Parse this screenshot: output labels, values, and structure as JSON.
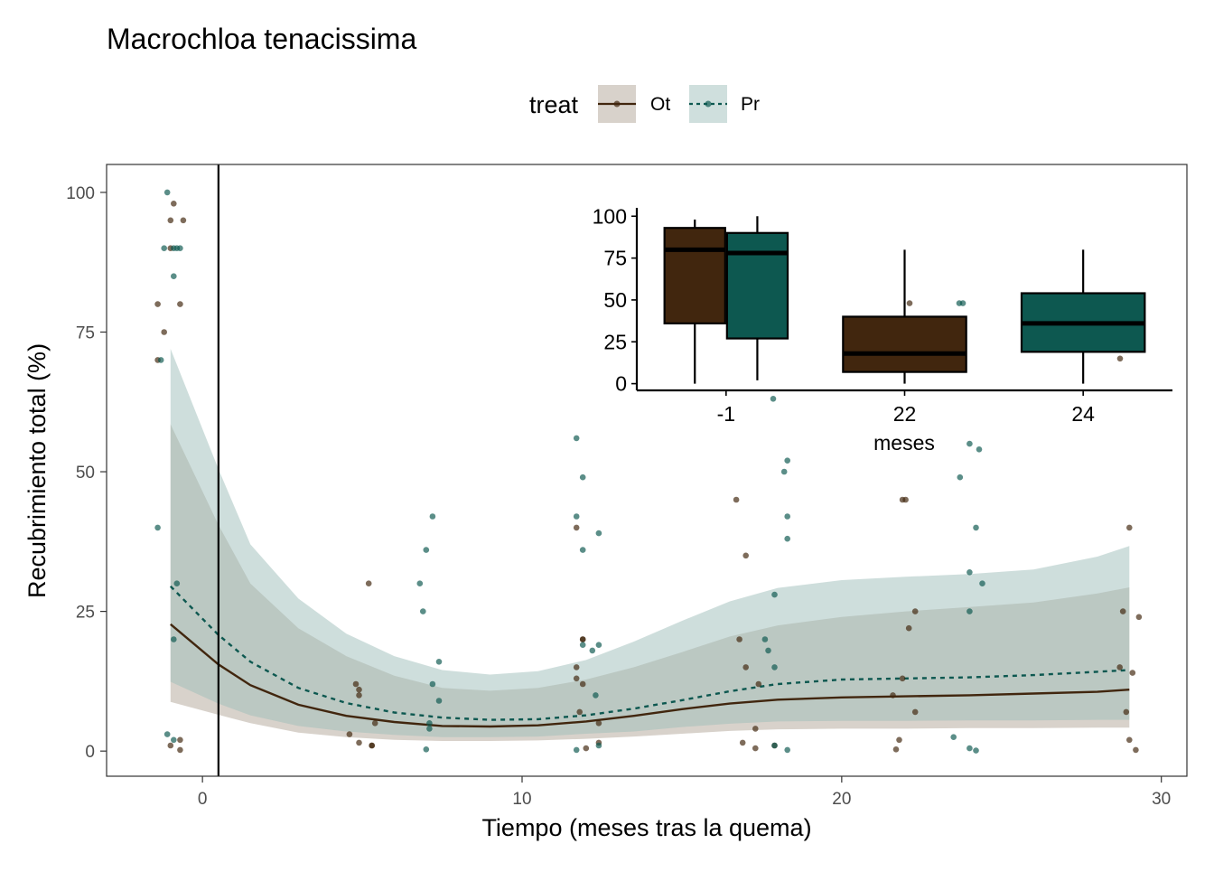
{
  "chart_data": [
    {
      "type": "line",
      "title": "Macrochloa tenacissima",
      "xlabel": "Tiempo (meses tras la quema)",
      "ylabel": "Recubrimiento total (%)",
      "xlim": [
        -3,
        30.8
      ],
      "ylim": [
        -4.5,
        105
      ],
      "x_ticks": [
        0,
        10,
        20,
        30
      ],
      "y_ticks": [
        0,
        25,
        50,
        75,
        100
      ],
      "grid": false,
      "vline_x": 0.5,
      "legend": {
        "title": "treat",
        "position": "top",
        "items": [
          {
            "label": "Ot",
            "color": "#41260e",
            "fill": "#d8d2cb",
            "linetype": "solid"
          },
          {
            "label": "Pr",
            "color": "#0d5850",
            "fill": "#cfdfdd",
            "linetype": "dashed"
          }
        ]
      },
      "series": [
        {
          "name": "Ot",
          "color": "#41260e",
          "ribbon_fill": "#d8d2cb",
          "fit": {
            "x": [
              -1,
              0.5,
              1.5,
              3,
              4.5,
              6,
              7.5,
              9,
              10.5,
              12,
              13.5,
              15,
              16.5,
              18,
              20,
              22,
              24,
              26,
              28,
              29
            ],
            "y": [
              22.7,
              15.5,
              11.8,
              8.3,
              6.3,
              5.2,
              4.5,
              4.4,
              4.6,
              5.3,
              6.3,
              7.5,
              8.5,
              9.2,
              9.6,
              9.8,
              10.0,
              10.3,
              10.6,
              11.0
            ],
            "lower": [
              8.8,
              6.5,
              5.0,
              3.3,
              2.5,
              2.0,
              1.8,
              1.8,
              1.9,
              2.2,
              2.6,
              3.1,
              3.6,
              3.9,
              4.0,
              4.0,
              4.1,
              4.1,
              4.2,
              4.2
            ],
            "upper": [
              58.5,
              40.5,
              30.0,
              22.0,
              17.0,
              13.5,
              11.3,
              10.8,
              11.3,
              12.8,
              15.0,
              17.7,
              20.5,
              22.5,
              24.0,
              25.0,
              25.8,
              26.6,
              28.2,
              29.3
            ]
          },
          "points": [
            [
              -1.4,
              80
            ],
            [
              -1.2,
              75
            ],
            [
              -1.0,
              95
            ],
            [
              -0.9,
              98
            ],
            [
              -0.6,
              95
            ],
            [
              -0.7,
              80
            ],
            [
              -1.4,
              70
            ],
            [
              -1.0,
              90
            ],
            [
              -0.7,
              2
            ],
            [
              -1.0,
              1
            ],
            [
              -0.7,
              0.2
            ],
            [
              4.8,
              12
            ],
            [
              4.9,
              10
            ],
            [
              4.9,
              11
            ],
            [
              5.2,
              30
            ],
            [
              4.6,
              3
            ],
            [
              4.9,
              1.5
            ],
            [
              5.3,
              1
            ],
            [
              5.4,
              5
            ],
            [
              5.3,
              1
            ],
            [
              11.7,
              40
            ],
            [
              12.4,
              5
            ],
            [
              11.8,
              7
            ],
            [
              11.9,
              20
            ],
            [
              11.7,
              13
            ],
            [
              11.9,
              12
            ],
            [
              11.7,
              15
            ],
            [
              11.9,
              20
            ],
            [
              12.0,
              0.5
            ],
            [
              12.4,
              1.5
            ],
            [
              16.7,
              45
            ],
            [
              16.8,
              20
            ],
            [
              17.0,
              35
            ],
            [
              17.0,
              15
            ],
            [
              16.9,
              1.5
            ],
            [
              17.3,
              4
            ],
            [
              17.4,
              12
            ],
            [
              17.3,
              0.5
            ],
            [
              17.9,
              1
            ],
            [
              21.9,
              45
            ],
            [
              22.0,
              45
            ],
            [
              22.1,
              22
            ],
            [
              22.3,
              25
            ],
            [
              22.3,
              7
            ],
            [
              21.6,
              10
            ],
            [
              21.7,
              0.3
            ],
            [
              21.8,
              2
            ],
            [
              21.9,
              13
            ],
            [
              28.8,
              25
            ],
            [
              29.0,
              2
            ],
            [
              29.1,
              14
            ],
            [
              29.3,
              24
            ],
            [
              29.2,
              0.2
            ],
            [
              29.0,
              40
            ],
            [
              28.7,
              15
            ],
            [
              28.9,
              7
            ]
          ]
        },
        {
          "name": "Pr",
          "color": "#0d5850",
          "ribbon_fill": "#cfdfdd",
          "fit": {
            "x": [
              -1,
              0.5,
              1.5,
              3,
              4.5,
              6,
              7.5,
              9,
              10.5,
              12,
              13.5,
              15,
              16.5,
              18,
              20,
              22,
              24,
              26,
              28,
              29
            ],
            "y": [
              29.5,
              20.8,
              16.0,
              11.3,
              8.6,
              6.9,
              6.0,
              5.6,
              5.7,
              6.4,
              7.6,
              9.1,
              10.7,
              12.0,
              12.8,
              13.0,
              13.2,
              13.6,
              14.2,
              14.5
            ],
            "lower": [
              12.4,
              8.5,
              6.4,
              4.5,
              3.5,
              2.9,
              2.5,
              2.5,
              2.6,
              3.1,
              3.5,
              4.3,
              4.9,
              5.3,
              5.4,
              5.4,
              5.5,
              5.5,
              5.6,
              5.6
            ],
            "upper": [
              72.0,
              50.5,
              37.0,
              27.3,
              21.0,
              17.0,
              14.5,
              13.7,
              14.3,
              16.3,
              19.6,
              23.3,
              26.8,
              29.2,
              30.6,
              31.2,
              31.7,
              32.5,
              34.8,
              36.7
            ]
          },
          "points": [
            [
              -1.1,
              100
            ],
            [
              -1.2,
              90
            ],
            [
              -0.9,
              90
            ],
            [
              -0.8,
              90
            ],
            [
              -0.7,
              90
            ],
            [
              -0.9,
              85
            ],
            [
              -1.3,
              70
            ],
            [
              -1.4,
              40
            ],
            [
              -0.8,
              30
            ],
            [
              -0.9,
              20
            ],
            [
              -1.1,
              3
            ],
            [
              -0.9,
              2
            ],
            [
              6.8,
              30
            ],
            [
              6.9,
              25
            ],
            [
              7.0,
              36
            ],
            [
              7.2,
              42
            ],
            [
              7.2,
              12
            ],
            [
              7.4,
              16
            ],
            [
              7.1,
              5
            ],
            [
              7.4,
              9
            ],
            [
              7.1,
              4
            ],
            [
              7.0,
              0.3
            ],
            [
              11.7,
              56
            ],
            [
              11.9,
              49
            ],
            [
              11.7,
              42
            ],
            [
              11.9,
              36
            ],
            [
              12.4,
              39
            ],
            [
              12.4,
              19
            ],
            [
              12.2,
              18
            ],
            [
              11.9,
              19
            ],
            [
              12.3,
              10
            ],
            [
              11.7,
              0.2
            ],
            [
              12.4,
              1
            ],
            [
              18.3,
              52
            ],
            [
              18.2,
              50
            ],
            [
              18.3,
              42
            ],
            [
              18.3,
              38
            ],
            [
              17.9,
              28
            ],
            [
              17.6,
              20
            ],
            [
              17.7,
              18
            ],
            [
              17.9,
              15
            ],
            [
              17.9,
              1
            ],
            [
              18.3,
              0.2
            ],
            [
              23.7,
              49
            ],
            [
              24.0,
              55
            ],
            [
              24.3,
              54
            ],
            [
              24.2,
              40
            ],
            [
              24.0,
              32
            ],
            [
              24.0,
              25
            ],
            [
              24.4,
              30
            ],
            [
              23.5,
              2.5
            ],
            [
              24.0,
              0.5
            ],
            [
              24.2,
              0.1
            ]
          ]
        }
      ]
    },
    {
      "type": "box",
      "xlabel": "meses",
      "categories": [
        "-1",
        "22",
        "24"
      ],
      "y_ticks": [
        0,
        25,
        50,
        75,
        100
      ],
      "ylim": [
        -4,
        105
      ],
      "series_colors": {
        "Ot": "#41260e",
        "Pr": "#0d5850"
      },
      "boxes": [
        {
          "category": "-1",
          "series": "Ot",
          "whisker_low": 0,
          "q1": 36,
          "median": 80,
          "q3": 93,
          "whisker_high": 98,
          "outliers": []
        },
        {
          "category": "-1",
          "series": "Pr",
          "whisker_low": 2,
          "q1": 27,
          "median": 78,
          "q3": 90,
          "whisker_high": 100,
          "outliers": [
            -9
          ]
        },
        {
          "category": "22",
          "series": "Ot",
          "whisker_low": 0,
          "q1": 7,
          "median": 18,
          "q3": 40,
          "whisker_high": 80,
          "outliers": [
            48,
            48
          ]
        },
        {
          "category": "24",
          "series": "Pr",
          "whisker_low": 0,
          "q1": 19,
          "median": 36,
          "q3": 54,
          "whisker_high": 80,
          "outliers": [
            15
          ]
        }
      ]
    }
  ]
}
